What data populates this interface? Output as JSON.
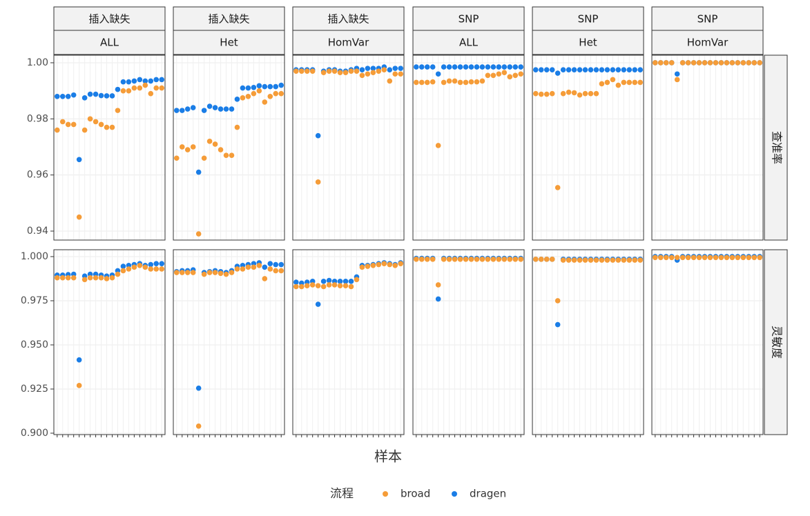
{
  "chart_data": {
    "type": "scatter",
    "xlabel": "样本",
    "legend_title": "流程",
    "series": [
      {
        "name": "broad",
        "color": "#f59c38"
      },
      {
        "name": "dragen",
        "color": "#1a7de6"
      }
    ],
    "categories": [
      null,
      null,
      null,
      null,
      null,
      null,
      null,
      null,
      null,
      null,
      null,
      null,
      null,
      null,
      null,
      null,
      null,
      null,
      null,
      null
    ],
    "grid": true,
    "columns": [
      {
        "group": "插入缺失",
        "subgroup": "ALL"
      },
      {
        "group": "插入缺失",
        "subgroup": "Het"
      },
      {
        "group": "插入缺失",
        "subgroup": "HomVar"
      },
      {
        "group": "SNP",
        "subgroup": "ALL"
      },
      {
        "group": "SNP",
        "subgroup": "Het"
      },
      {
        "group": "SNP",
        "subgroup": "HomVar"
      }
    ],
    "rows": [
      {
        "label": "查准率",
        "ylim": [
          0.9368,
          1.0027
        ],
        "yticks": [
          0.94,
          0.96,
          0.98,
          {
            "value": 1,
            "label": "1.00"
          }
        ]
      },
      {
        "label": "灵敏度",
        "ylim": [
          0.8992,
          1.0039
        ],
        "yticks": [
          {
            "value": 0.9,
            "label": "0.900"
          },
          0.925,
          {
            "value": 0.95,
            "label": "0.950"
          },
          0.975,
          {
            "value": 1,
            "label": "1.000"
          }
        ]
      }
    ],
    "panels": [
      {
        "row": 0,
        "col": 0,
        "values": [
          [
            0.976,
            0.979,
            0.978,
            0.978,
            0.945,
            0.976,
            0.98,
            0.979,
            0.978,
            0.977,
            0.977,
            0.983,
            0.99,
            0.99,
            0.991,
            0.991,
            0.992,
            0.989,
            0.991,
            0.991
          ],
          [
            0.988,
            0.988,
            0.988,
            0.9885,
            0.9655,
            0.9875,
            0.9888,
            0.9888,
            0.9883,
            0.9882,
            0.9882,
            0.9905,
            0.9932,
            0.9932,
            0.9935,
            0.994,
            0.9935,
            0.9935,
            0.994,
            0.994
          ]
        ]
      },
      {
        "row": 0,
        "col": 1,
        "values": [
          [
            0.966,
            0.97,
            0.969,
            0.97,
            0.939,
            0.966,
            0.972,
            0.971,
            0.969,
            0.967,
            0.967,
            0.977,
            0.9875,
            0.988,
            0.989,
            0.99,
            0.986,
            0.988,
            0.989,
            0.989
          ],
          [
            0.983,
            0.983,
            0.9835,
            0.984,
            0.961,
            0.983,
            0.9845,
            0.984,
            0.9835,
            0.9835,
            0.9835,
            0.987,
            0.991,
            0.991,
            0.9912,
            0.9918,
            0.9915,
            0.9915,
            0.9915,
            0.992
          ]
        ]
      },
      {
        "row": 0,
        "col": 2,
        "values": [
          [
            0.997,
            0.997,
            0.997,
            0.997,
            0.9575,
            0.9965,
            0.997,
            0.997,
            0.9965,
            0.9965,
            0.997,
            0.997,
            0.9955,
            0.996,
            0.9965,
            0.997,
            0.9975,
            0.9935,
            0.996,
            0.996
          ],
          [
            0.9975,
            0.9975,
            0.9975,
            0.9975,
            0.974,
            0.997,
            0.9975,
            0.9975,
            0.997,
            0.997,
            0.9975,
            0.998,
            0.9975,
            0.998,
            0.998,
            0.998,
            0.9985,
            0.9975,
            0.998,
            0.998
          ]
        ]
      },
      {
        "row": 0,
        "col": 3,
        "values": [
          [
            0.993,
            0.993,
            0.993,
            0.9932,
            0.9705,
            0.993,
            0.9935,
            0.9935,
            0.993,
            0.993,
            0.9932,
            0.9932,
            0.9935,
            0.9955,
            0.9955,
            0.996,
            0.9965,
            0.995,
            0.9955,
            0.996
          ],
          [
            0.9985,
            0.9985,
            0.9985,
            0.9985,
            0.996,
            0.9985,
            0.9985,
            0.9985,
            0.9985,
            0.9985,
            0.9985,
            0.9985,
            0.9985,
            0.9985,
            0.9985,
            0.9985,
            0.9985,
            0.9985,
            0.9985,
            0.9985
          ]
        ]
      },
      {
        "row": 0,
        "col": 4,
        "values": [
          [
            0.989,
            0.9888,
            0.9888,
            0.989,
            0.9555,
            0.989,
            0.9895,
            0.9893,
            0.9885,
            0.989,
            0.989,
            0.989,
            0.9925,
            0.993,
            0.994,
            0.992,
            0.993,
            0.993,
            0.993,
            0.993
          ],
          [
            0.9975,
            0.9975,
            0.9975,
            0.9975,
            0.9963,
            0.9975,
            0.9975,
            0.9975,
            0.9975,
            0.9975,
            0.9975,
            0.9975,
            0.9975,
            0.9975,
            0.9975,
            0.9975,
            0.9975,
            0.9975,
            0.9975,
            0.9975
          ]
        ]
      },
      {
        "row": 0,
        "col": 5,
        "values": [
          [
            1,
            1,
            1,
            1,
            0.994,
            1,
            1,
            1,
            1,
            1,
            1,
            1,
            1,
            1,
            1,
            1,
            1,
            1,
            1,
            1
          ],
          [
            1,
            1,
            1,
            1,
            0.996,
            1,
            1,
            1,
            1,
            1,
            1,
            1,
            1,
            1,
            1,
            1,
            1,
            1,
            1,
            1
          ]
        ]
      },
      {
        "row": 1,
        "col": 0,
        "values": [
          [
            0.988,
            0.988,
            0.988,
            0.988,
            0.927,
            0.987,
            0.988,
            0.988,
            0.988,
            0.9875,
            0.988,
            0.99,
            0.992,
            0.993,
            0.994,
            0.995,
            0.994,
            0.993,
            0.993,
            0.993
          ],
          [
            0.9895,
            0.9895,
            0.9898,
            0.99,
            0.9415,
            0.989,
            0.99,
            0.99,
            0.9895,
            0.989,
            0.9895,
            0.992,
            0.9945,
            0.995,
            0.9955,
            0.996,
            0.995,
            0.9955,
            0.996,
            0.996
          ]
        ]
      },
      {
        "row": 1,
        "col": 1,
        "values": [
          [
            0.991,
            0.991,
            0.991,
            0.991,
            0.904,
            0.99,
            0.991,
            0.991,
            0.9905,
            0.99,
            0.991,
            0.993,
            0.993,
            0.994,
            0.994,
            0.995,
            0.9875,
            0.993,
            0.992,
            0.992
          ],
          [
            0.9915,
            0.992,
            0.992,
            0.9925,
            0.9255,
            0.991,
            0.9915,
            0.992,
            0.9915,
            0.991,
            0.992,
            0.9945,
            0.995,
            0.9955,
            0.996,
            0.9965,
            0.994,
            0.996,
            0.9955,
            0.9955
          ]
        ]
      },
      {
        "row": 1,
        "col": 2,
        "values": [
          [
            0.983,
            0.983,
            0.9835,
            0.984,
            0.9835,
            0.983,
            0.984,
            0.984,
            0.9835,
            0.9835,
            0.983,
            0.987,
            0.994,
            0.9945,
            0.995,
            0.9955,
            0.996,
            0.9955,
            0.995,
            0.996
          ],
          [
            0.9855,
            0.985,
            0.9855,
            0.986,
            0.973,
            0.986,
            0.9865,
            0.986,
            0.986,
            0.986,
            0.986,
            0.9885,
            0.995,
            0.995,
            0.9955,
            0.996,
            0.9965,
            0.996,
            0.9955,
            0.9965
          ]
        ]
      },
      {
        "row": 1,
        "col": 3,
        "values": [
          [
            0.9985,
            0.9985,
            0.9985,
            0.9985,
            0.984,
            0.9985,
            0.9985,
            0.9985,
            0.9985,
            0.9985,
            0.9985,
            0.9985,
            0.9985,
            0.9985,
            0.9985,
            0.9985,
            0.9985,
            0.9985,
            0.9985,
            0.9985
          ],
          [
            0.999,
            0.999,
            0.999,
            0.999,
            0.976,
            0.999,
            0.999,
            0.999,
            0.999,
            0.999,
            0.999,
            0.999,
            0.999,
            0.999,
            0.999,
            0.999,
            0.999,
            0.999,
            0.999,
            0.999
          ]
        ]
      },
      {
        "row": 1,
        "col": 4,
        "values": [
          [
            0.9985,
            0.9985,
            0.9985,
            0.9985,
            0.975,
            0.998,
            0.998,
            0.998,
            0.998,
            0.998,
            0.998,
            0.998,
            0.998,
            0.998,
            0.998,
            0.998,
            0.998,
            0.998,
            0.998,
            0.998
          ],
          [
            0.9985,
            0.9985,
            0.9985,
            0.9985,
            0.9615,
            0.9985,
            0.9985,
            0.9985,
            0.9985,
            0.9985,
            0.9985,
            0.9985,
            0.9985,
            0.9985,
            0.9985,
            0.9985,
            0.9985,
            0.9985,
            0.9985,
            0.9985
          ]
        ]
      },
      {
        "row": 1,
        "col": 5,
        "values": [
          [
            0.9995,
            0.9995,
            0.9995,
            0.9995,
            0.9995,
            0.9995,
            0.9995,
            0.9995,
            0.9995,
            0.9995,
            0.9995,
            0.9995,
            0.9995,
            0.9995,
            0.9995,
            0.9995,
            0.9995,
            0.9995,
            0.9995,
            0.9995
          ],
          [
            1,
            1,
            1,
            1,
            0.998,
            1,
            1,
            1,
            1,
            1,
            1,
            1,
            1,
            1,
            1,
            1,
            1,
            1,
            1,
            1
          ]
        ]
      }
    ]
  }
}
